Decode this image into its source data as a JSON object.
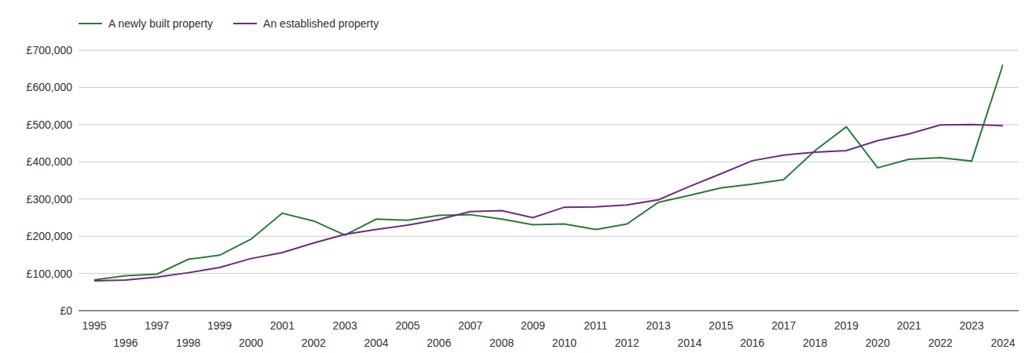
{
  "chart_data": {
    "type": "line",
    "legend": "top-left",
    "grid": true,
    "marker": "none",
    "x": [
      1995,
      1996,
      1997,
      1998,
      1999,
      2000,
      2001,
      2002,
      2003,
      2004,
      2005,
      2006,
      2007,
      2008,
      2009,
      2010,
      2011,
      2012,
      2013,
      2014,
      2015,
      2016,
      2017,
      2018,
      2019,
      2020,
      2021,
      2022,
      2023,
      2024
    ],
    "xlim": [
      1995,
      2024
    ],
    "xticks": [
      1995,
      1996,
      1997,
      1998,
      1999,
      2000,
      2001,
      2002,
      2003,
      2004,
      2005,
      2006,
      2007,
      2008,
      2009,
      2010,
      2011,
      2012,
      2013,
      2014,
      2015,
      2016,
      2017,
      2018,
      2019,
      2020,
      2021,
      2022,
      2023,
      2024
    ],
    "ylim": [
      0,
      700000
    ],
    "yticks": [
      {
        "value": 0,
        "label": "£0"
      },
      {
        "value": 100000,
        "label": "£100,000"
      },
      {
        "value": 200000,
        "label": "£200,000"
      },
      {
        "value": 300000,
        "label": "£300,000"
      },
      {
        "value": 400000,
        "label": "£400,000"
      },
      {
        "value": 500000,
        "label": "£500,000"
      },
      {
        "value": 600000,
        "label": "£600,000"
      },
      {
        "value": 700000,
        "label": "£700,000"
      }
    ],
    "series": [
      {
        "name": "A newly built property",
        "color": "#2b7a3b",
        "values": [
          83000,
          94000,
          98000,
          138000,
          149000,
          192000,
          262000,
          241000,
          203000,
          246000,
          243000,
          256000,
          258000,
          246000,
          231000,
          233000,
          218000,
          233000,
          291000,
          310000,
          330000,
          340000,
          352000,
          430000,
          494000,
          384000,
          407000,
          411000,
          402000,
          662000
        ]
      },
      {
        "name": "An established property",
        "color": "#6b2c7c",
        "values": [
          80000,
          82000,
          90000,
          102000,
          116000,
          140000,
          156000,
          182000,
          205000,
          218000,
          230000,
          245000,
          266000,
          269000,
          250000,
          278000,
          279000,
          284000,
          298000,
          334000,
          368000,
          403000,
          418000,
          426000,
          430000,
          457000,
          475000,
          499000,
          500000,
          497000
        ]
      }
    ]
  }
}
